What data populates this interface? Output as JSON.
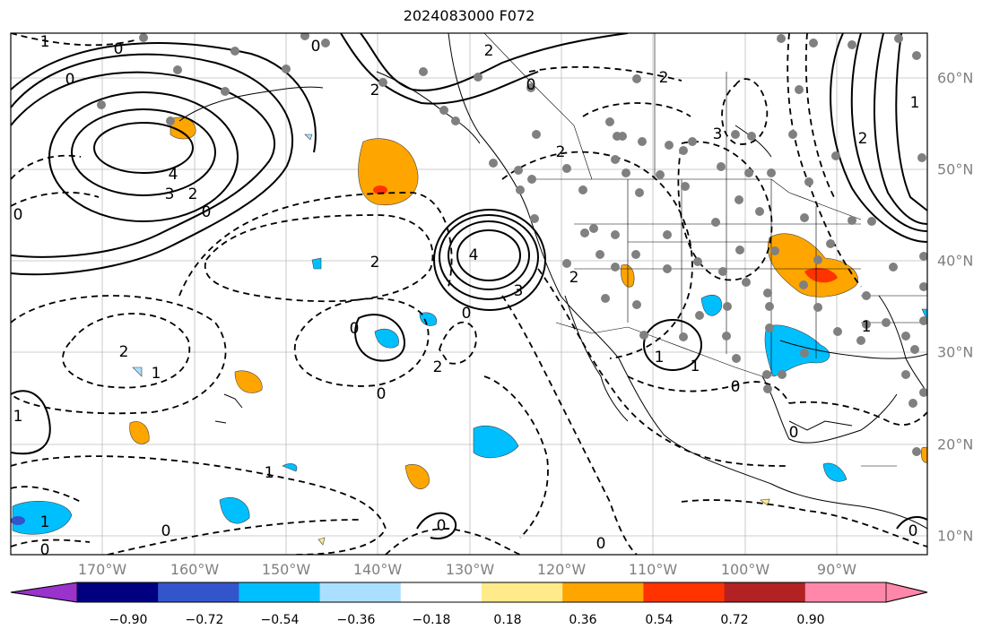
{
  "title": "2024083000 F072",
  "lon_labels": [
    "170°W",
    "160°W",
    "150°W",
    "140°W",
    "130°W",
    "120°W",
    "110°W",
    "100°W",
    "90°W"
  ],
  "lat_labels": [
    "60°N",
    "50°N",
    "40°N",
    "30°N",
    "20°N",
    "10°N"
  ],
  "colorbar": {
    "ticks": [
      "−0.90",
      "−0.72",
      "−0.54",
      "−0.36",
      "−0.18",
      "0.18",
      "0.36",
      "0.54",
      "0.72",
      "0.90"
    ],
    "colors": [
      "#9933cc",
      "#000080",
      "#3355cc",
      "#00bfff",
      "#aadfff",
      "#ffffff",
      "#ffeb8a",
      "#ffa500",
      "#ff3300",
      "#b22222",
      "#ff88aa"
    ]
  },
  "contour_labels": [
    "1",
    "0",
    "0",
    "2",
    "0",
    "4",
    "3",
    "2",
    "0",
    "2",
    "2",
    "4",
    "3",
    "0",
    "2",
    "0",
    "2",
    "1",
    "0",
    "1",
    "0",
    "2",
    "0",
    "1",
    "0",
    "0",
    "1",
    "1",
    "0",
    "0",
    "0",
    "0",
    "2",
    "3",
    "2",
    "1",
    "0",
    "1",
    "2",
    "1",
    "0"
  ]
}
